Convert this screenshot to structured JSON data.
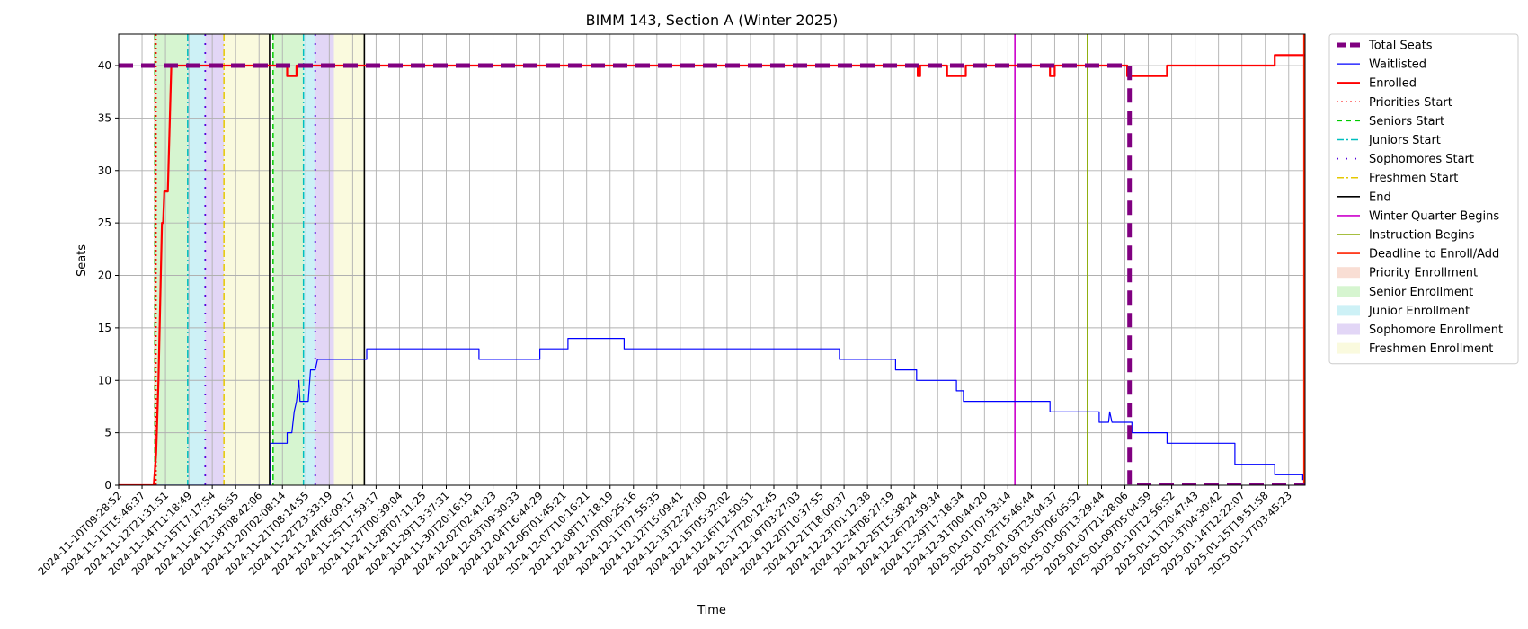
{
  "chart_data": {
    "type": "line",
    "title": "BIMM 143, Section A (Winter 2025)",
    "xlabel": "Time",
    "ylabel": "Seats",
    "ylim": [
      0,
      43
    ],
    "yticks": [
      0,
      5,
      10,
      15,
      20,
      25,
      30,
      35,
      40
    ],
    "grid": true,
    "legend_position": "outside-right",
    "x_index_range": [
      0,
      50.7
    ],
    "x_tick_labels": [
      "2024-11-10T09:28:52",
      "2024-11-11T15:46:37",
      "2024-11-12T21:31:51",
      "2024-11-14T11:18:49",
      "2024-11-15T17:17:54",
      "2024-11-16T23:16:55",
      "2024-11-18T08:42:06",
      "2024-11-20T02:08:14",
      "2024-11-21T08:14:55",
      "2024-11-22T23:33:19",
      "2024-11-24T06:09:17",
      "2024-11-25T17:59:17",
      "2024-11-27T00:39:04",
      "2024-11-28T07:11:25",
      "2024-11-29T13:37:31",
      "2024-11-30T20:16:15",
      "2024-12-02T02:41:23",
      "2024-12-03T09:30:33",
      "2024-12-04T16:44:29",
      "2024-12-06T01:45:21",
      "2024-12-07T10:16:21",
      "2024-12-08T17:18:19",
      "2024-12-10T00:25:16",
      "2024-12-11T07:55:35",
      "2024-12-12T15:09:41",
      "2024-12-13T22:27:00",
      "2024-12-15T05:32:02",
      "2024-12-16T12:50:51",
      "2024-12-17T20:12:45",
      "2024-12-19T03:27:03",
      "2024-12-20T10:37:55",
      "2024-12-21T18:00:37",
      "2024-12-23T01:12:38",
      "2024-12-24T08:27:19",
      "2024-12-25T15:38:24",
      "2024-12-26T22:59:34",
      "2024-12-29T17:18:34",
      "2024-12-31T00:44:20",
      "2025-01-01T07:53:14",
      "2025-01-02T15:46:44",
      "2025-01-03T23:04:37",
      "2025-01-05T06:05:52",
      "2025-01-06T13:29:44",
      "2025-01-07T21:28:06",
      "2025-01-09T05:04:59",
      "2025-01-10T12:56:52",
      "2025-01-11T20:47:43",
      "2025-01-13T04:30:42",
      "2025-01-14T12:22:07",
      "2025-01-15T19:51:58",
      "2025-01-17T03:45:23"
    ],
    "series": [
      {
        "name": "Total Seats",
        "color": "#800080",
        "style": "dashed-thick",
        "points": [
          [
            0,
            40
          ],
          [
            43.2,
            40
          ],
          [
            43.2,
            0
          ],
          [
            50.7,
            0
          ]
        ]
      },
      {
        "name": "Waitlisted",
        "color": "#0000ff",
        "style": "solid-thin",
        "points": [
          [
            0,
            0
          ],
          [
            6.5,
            0
          ],
          [
            6.5,
            4
          ],
          [
            7.2,
            4
          ],
          [
            7.2,
            5
          ],
          [
            7.4,
            5
          ],
          [
            7.5,
            7
          ],
          [
            7.6,
            8
          ],
          [
            7.7,
            10
          ],
          [
            7.75,
            8
          ],
          [
            8.1,
            8
          ],
          [
            8.2,
            11
          ],
          [
            8.4,
            11
          ],
          [
            8.5,
            12
          ],
          [
            10.6,
            12
          ],
          [
            10.6,
            13
          ],
          [
            15.4,
            13
          ],
          [
            15.4,
            12
          ],
          [
            18.0,
            12
          ],
          [
            18.0,
            13
          ],
          [
            19.2,
            13
          ],
          [
            19.2,
            14
          ],
          [
            21.6,
            14
          ],
          [
            21.6,
            13
          ],
          [
            30.8,
            13
          ],
          [
            30.8,
            12
          ],
          [
            33.2,
            12
          ],
          [
            33.2,
            11
          ],
          [
            34.1,
            11
          ],
          [
            34.1,
            10
          ],
          [
            35.8,
            10
          ],
          [
            35.8,
            9
          ],
          [
            36.1,
            9
          ],
          [
            36.1,
            8
          ],
          [
            39.8,
            8
          ],
          [
            39.8,
            7
          ],
          [
            41.9,
            7
          ],
          [
            41.9,
            6
          ],
          [
            42.3,
            6
          ],
          [
            42.35,
            7
          ],
          [
            42.45,
            6
          ],
          [
            43.3,
            6
          ],
          [
            43.3,
            5
          ],
          [
            44.8,
            5
          ],
          [
            44.8,
            4
          ],
          [
            47.7,
            4
          ],
          [
            47.7,
            2
          ],
          [
            49.4,
            2
          ],
          [
            49.4,
            1
          ],
          [
            50.6,
            1
          ],
          [
            50.6,
            0.5
          ]
        ]
      },
      {
        "name": "Enrolled",
        "color": "#ff0000",
        "style": "solid-thick",
        "points": [
          [
            0,
            0
          ],
          [
            1.5,
            0
          ],
          [
            1.6,
            3
          ],
          [
            1.7,
            10
          ],
          [
            1.8,
            20
          ],
          [
            1.85,
            25
          ],
          [
            1.9,
            25
          ],
          [
            1.95,
            28
          ],
          [
            2.1,
            28
          ],
          [
            2.25,
            40
          ],
          [
            7.2,
            40
          ],
          [
            7.2,
            39
          ],
          [
            7.6,
            39
          ],
          [
            7.6,
            40
          ],
          [
            34.15,
            40
          ],
          [
            34.15,
            39
          ],
          [
            34.25,
            39
          ],
          [
            34.25,
            40
          ],
          [
            35.4,
            40
          ],
          [
            35.4,
            39
          ],
          [
            36.2,
            39
          ],
          [
            36.2,
            40
          ],
          [
            39.8,
            40
          ],
          [
            39.8,
            39
          ],
          [
            40.0,
            39
          ],
          [
            40.0,
            40
          ],
          [
            43.1,
            40
          ],
          [
            43.1,
            39
          ],
          [
            44.8,
            39
          ],
          [
            44.8,
            40
          ],
          [
            49.4,
            40
          ],
          [
            49.4,
            41
          ],
          [
            50.7,
            41
          ]
        ]
      }
    ],
    "vertical_markers": [
      {
        "name": "Priorities Start",
        "x": 1.6,
        "color": "#ff0000",
        "style": "dotted"
      },
      {
        "name": "Seniors Start",
        "x": 1.55,
        "color": "#00cc00",
        "style": "dashed"
      },
      {
        "name": "Seniors Start",
        "x": 6.6,
        "color": "#00cc00",
        "style": "dashed"
      },
      {
        "name": "Juniors Start",
        "x": 2.95,
        "color": "#00bfbf",
        "style": "dashdot"
      },
      {
        "name": "Juniors Start",
        "x": 7.9,
        "color": "#00bfbf",
        "style": "dashdot"
      },
      {
        "name": "Sophomores Start",
        "x": 3.7,
        "color": "#5500dd",
        "style": "dashdot-sparse"
      },
      {
        "name": "Sophomores Start",
        "x": 8.4,
        "color": "#5500dd",
        "style": "dashdot-sparse"
      },
      {
        "name": "Freshmen Start",
        "x": 4.5,
        "color": "#e6c800",
        "style": "dashdot"
      },
      {
        "name": "End",
        "x": 6.45,
        "color": "#000000",
        "style": "solid"
      },
      {
        "name": "End",
        "x": 10.5,
        "color": "#000000",
        "style": "solid"
      },
      {
        "name": "Winter Quarter Begins",
        "x": 38.3,
        "color": "#cc00cc",
        "style": "solid"
      },
      {
        "name": "Instruction Begins",
        "x": 41.4,
        "color": "#88aa00",
        "style": "solid"
      },
      {
        "name": "Deadline to Enroll/Add",
        "x": 50.65,
        "color": "#ff2200",
        "style": "solid"
      }
    ],
    "shaded_periods": [
      {
        "name": "Priority Enrollment",
        "x0": 1.5,
        "x1": 1.6,
        "color": "#f4c2b0"
      },
      {
        "name": "Senior Enrollment",
        "x0": 1.6,
        "x1": 2.95,
        "color": "#b4ecaa"
      },
      {
        "name": "Junior Enrollment",
        "x0": 2.95,
        "x1": 3.7,
        "color": "#a4e6ee"
      },
      {
        "name": "Sophomore Enrollment",
        "x0": 3.7,
        "x1": 4.5,
        "color": "#cab4ee"
      },
      {
        "name": "Freshmen Enrollment",
        "x0": 4.5,
        "x1": 6.45,
        "color": "#f6f6c2"
      },
      {
        "name": "Senior Enrollment",
        "x0": 6.6,
        "x1": 7.9,
        "color": "#b4ecaa"
      },
      {
        "name": "Junior Enrollment",
        "x0": 7.9,
        "x1": 8.4,
        "color": "#a4e6ee"
      },
      {
        "name": "Sophomore Enrollment",
        "x0": 8.4,
        "x1": 9.2,
        "color": "#cab4ee"
      },
      {
        "name": "Freshmen Enrollment",
        "x0": 9.2,
        "x1": 10.5,
        "color": "#f6f6c2"
      }
    ],
    "legend": [
      {
        "label": "Total Seats",
        "kind": "line",
        "color": "#800080",
        "style": "dashed-thick"
      },
      {
        "label": "Waitlisted",
        "kind": "line",
        "color": "#0000ff",
        "style": "solid-thin"
      },
      {
        "label": "Enrolled",
        "kind": "line",
        "color": "#ff0000",
        "style": "solid-thick"
      },
      {
        "label": "Priorities Start",
        "kind": "line",
        "color": "#ff0000",
        "style": "dotted"
      },
      {
        "label": "Seniors Start",
        "kind": "line",
        "color": "#00cc00",
        "style": "dashed"
      },
      {
        "label": "Juniors Start",
        "kind": "line",
        "color": "#00bfbf",
        "style": "dashdot"
      },
      {
        "label": "Sophomores Start",
        "kind": "line",
        "color": "#5500dd",
        "style": "dashdot-sparse"
      },
      {
        "label": "Freshmen Start",
        "kind": "line",
        "color": "#e6c800",
        "style": "dashdot"
      },
      {
        "label": "End",
        "kind": "line",
        "color": "#000000",
        "style": "solid"
      },
      {
        "label": "Winter Quarter Begins",
        "kind": "line",
        "color": "#cc00cc",
        "style": "solid"
      },
      {
        "label": "Instruction Begins",
        "kind": "line",
        "color": "#88aa00",
        "style": "solid"
      },
      {
        "label": "Deadline to Enroll/Add",
        "kind": "line",
        "color": "#ff2200",
        "style": "solid"
      },
      {
        "label": "Priority Enrollment",
        "kind": "patch",
        "color": "#f4c2b0"
      },
      {
        "label": "Senior Enrollment",
        "kind": "patch",
        "color": "#b4ecaa"
      },
      {
        "label": "Junior Enrollment",
        "kind": "patch",
        "color": "#a4e6ee"
      },
      {
        "label": "Sophomore Enrollment",
        "kind": "patch",
        "color": "#cab4ee"
      },
      {
        "label": "Freshmen Enrollment",
        "kind": "patch",
        "color": "#f6f6c2"
      }
    ]
  }
}
